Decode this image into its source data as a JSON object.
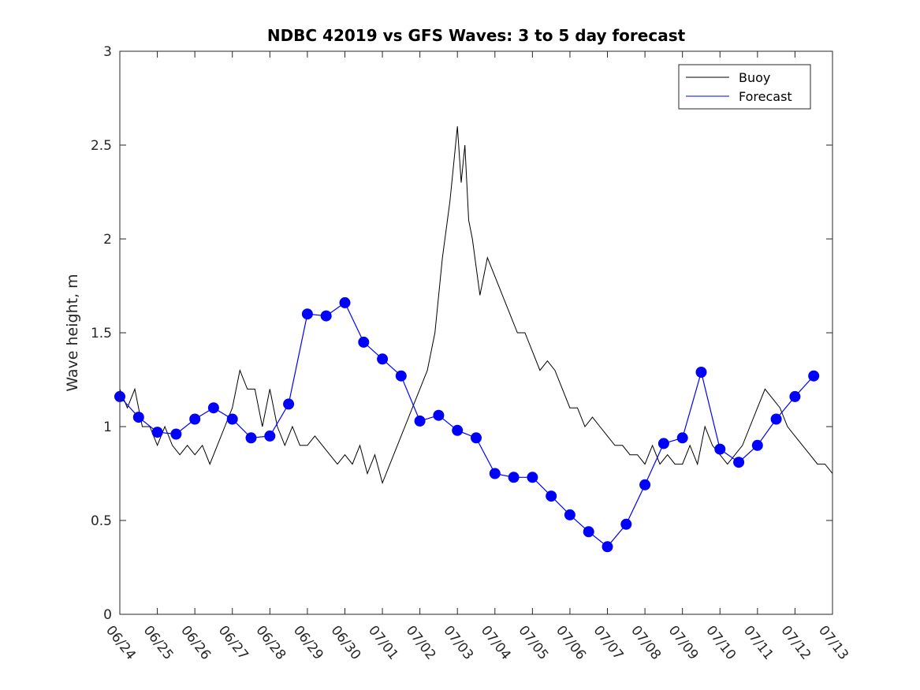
{
  "chart_data": {
    "type": "line",
    "title": "NDBC 42019 vs GFS Waves: 3 to 5 day forecast",
    "xlabel": "",
    "ylabel": "Wave height, m",
    "ylim": [
      0,
      3
    ],
    "yticks": [
      0,
      0.5,
      1,
      1.5,
      2,
      2.5,
      3
    ],
    "ytick_labels": [
      "0",
      "0.5",
      "1",
      "1.5",
      "2",
      "2.5",
      "3"
    ],
    "xlim_days": [
      0,
      19
    ],
    "xtick_labels": [
      "06/24",
      "06/25",
      "06/26",
      "06/27",
      "06/28",
      "06/29",
      "06/30",
      "07/01",
      "07/02",
      "07/03",
      "07/04",
      "07/05",
      "07/06",
      "07/07",
      "07/08",
      "07/09",
      "07/10",
      "07/11",
      "07/12",
      "07/13"
    ],
    "legend": {
      "position": "top-right",
      "entries": [
        {
          "label": "Buoy",
          "color": "#000000"
        },
        {
          "label": "Forecast",
          "color": "#0000ff"
        }
      ]
    },
    "series": [
      {
        "name": "Buoy",
        "color": "#000000",
        "points": [
          [
            0,
            1.2
          ],
          [
            0.2,
            1.1
          ],
          [
            0.4,
            1.2
          ],
          [
            0.6,
            1.0
          ],
          [
            0.8,
            1.0
          ],
          [
            1.0,
            0.9
          ],
          [
            1.2,
            1.0
          ],
          [
            1.4,
            0.9
          ],
          [
            1.6,
            0.85
          ],
          [
            1.8,
            0.9
          ],
          [
            2.0,
            0.85
          ],
          [
            2.2,
            0.9
          ],
          [
            2.4,
            0.8
          ],
          [
            2.6,
            0.9
          ],
          [
            2.8,
            1.0
          ],
          [
            3.0,
            1.1
          ],
          [
            3.2,
            1.3
          ],
          [
            3.4,
            1.2
          ],
          [
            3.6,
            1.2
          ],
          [
            3.8,
            1.0
          ],
          [
            4.0,
            1.2
          ],
          [
            4.2,
            1.0
          ],
          [
            4.4,
            0.9
          ],
          [
            4.6,
            1.0
          ],
          [
            4.8,
            0.9
          ],
          [
            5.0,
            0.9
          ],
          [
            5.2,
            0.95
          ],
          [
            5.4,
            0.9
          ],
          [
            5.6,
            0.85
          ],
          [
            5.8,
            0.8
          ],
          [
            6.0,
            0.85
          ],
          [
            6.2,
            0.8
          ],
          [
            6.4,
            0.9
          ],
          [
            6.6,
            0.75
          ],
          [
            6.8,
            0.85
          ],
          [
            7.0,
            0.7
          ],
          [
            7.2,
            0.8
          ],
          [
            7.4,
            0.9
          ],
          [
            7.6,
            1.0
          ],
          [
            7.8,
            1.1
          ],
          [
            8.0,
            1.2
          ],
          [
            8.2,
            1.3
          ],
          [
            8.4,
            1.5
          ],
          [
            8.6,
            1.9
          ],
          [
            8.8,
            2.2
          ],
          [
            8.9,
            2.4
          ],
          [
            9.0,
            2.6
          ],
          [
            9.1,
            2.3
          ],
          [
            9.2,
            2.5
          ],
          [
            9.3,
            2.1
          ],
          [
            9.4,
            2.0
          ],
          [
            9.6,
            1.7
          ],
          [
            9.8,
            1.9
          ],
          [
            10.0,
            1.8
          ],
          [
            10.2,
            1.7
          ],
          [
            10.4,
            1.6
          ],
          [
            10.6,
            1.5
          ],
          [
            10.8,
            1.5
          ],
          [
            11.0,
            1.4
          ],
          [
            11.2,
            1.3
          ],
          [
            11.4,
            1.35
          ],
          [
            11.6,
            1.3
          ],
          [
            11.8,
            1.2
          ],
          [
            12.0,
            1.1
          ],
          [
            12.2,
            1.1
          ],
          [
            12.4,
            1.0
          ],
          [
            12.6,
            1.05
          ],
          [
            12.8,
            1.0
          ],
          [
            13.0,
            0.95
          ],
          [
            13.2,
            0.9
          ],
          [
            13.4,
            0.9
          ],
          [
            13.6,
            0.85
          ],
          [
            13.8,
            0.85
          ],
          [
            14.0,
            0.8
          ],
          [
            14.2,
            0.9
          ],
          [
            14.4,
            0.8
          ],
          [
            14.6,
            0.85
          ],
          [
            14.8,
            0.8
          ],
          [
            15.0,
            0.8
          ],
          [
            15.2,
            0.9
          ],
          [
            15.4,
            0.8
          ],
          [
            15.6,
            1.0
          ],
          [
            15.8,
            0.9
          ],
          [
            16.0,
            0.85
          ],
          [
            16.2,
            0.8
          ],
          [
            16.4,
            0.85
          ],
          [
            16.6,
            0.9
          ],
          [
            16.8,
            1.0
          ],
          [
            17.0,
            1.1
          ],
          [
            17.2,
            1.2
          ],
          [
            17.4,
            1.15
          ],
          [
            17.6,
            1.1
          ],
          [
            17.8,
            1.0
          ],
          [
            18.0,
            0.95
          ],
          [
            18.2,
            0.9
          ],
          [
            18.4,
            0.85
          ],
          [
            18.6,
            0.8
          ],
          [
            18.8,
            0.8
          ],
          [
            19.0,
            0.75
          ]
        ]
      },
      {
        "name": "Forecast",
        "color": "#0000ff",
        "points": [
          [
            0.0,
            1.16
          ],
          [
            0.5,
            1.05
          ],
          [
            1.0,
            0.97
          ],
          [
            1.5,
            0.96
          ],
          [
            2.0,
            1.04
          ],
          [
            2.5,
            1.1
          ],
          [
            3.0,
            1.04
          ],
          [
            3.5,
            0.94
          ],
          [
            4.0,
            0.95
          ],
          [
            4.5,
            1.12
          ],
          [
            5.0,
            1.6
          ],
          [
            5.5,
            1.59
          ],
          [
            6.0,
            1.66
          ],
          [
            6.5,
            1.45
          ],
          [
            7.0,
            1.36
          ],
          [
            7.5,
            1.27
          ],
          [
            8.0,
            1.03
          ],
          [
            8.5,
            1.06
          ],
          [
            9.0,
            0.98
          ],
          [
            9.5,
            0.94
          ],
          [
            10.0,
            0.75
          ],
          [
            10.5,
            0.73
          ],
          [
            11.0,
            0.73
          ],
          [
            11.5,
            0.63
          ],
          [
            12.0,
            0.53
          ],
          [
            12.5,
            0.44
          ],
          [
            13.0,
            0.36
          ],
          [
            13.5,
            0.48
          ],
          [
            14.0,
            0.69
          ],
          [
            14.5,
            0.91
          ],
          [
            15.0,
            0.94
          ],
          [
            15.5,
            1.29
          ],
          [
            16.0,
            0.88
          ],
          [
            16.5,
            0.81
          ],
          [
            17.0,
            0.9
          ],
          [
            17.5,
            1.04
          ],
          [
            18.0,
            1.16
          ],
          [
            18.5,
            1.27
          ]
        ]
      }
    ]
  }
}
